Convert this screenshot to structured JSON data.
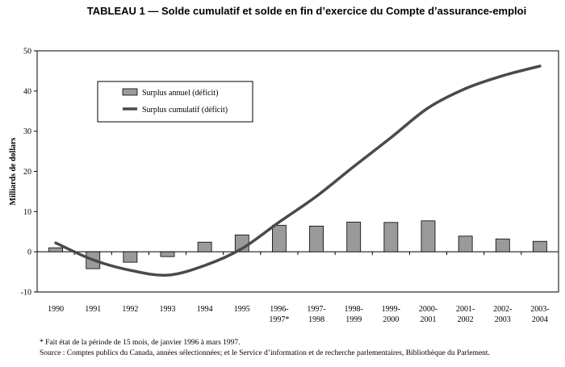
{
  "chart_data": {
    "type": "bar+line",
    "title": "TABLEAU 1 — Solde cumulatif et solde en fin d’exercice du Compte d’assurance-emploi",
    "ylabel": "Milliards de dollars",
    "xlabel": "",
    "ylim": [
      -10,
      50
    ],
    "yticks": [
      -10,
      0,
      10,
      20,
      30,
      40,
      50
    ],
    "categories": [
      [
        "1990"
      ],
      [
        "1991"
      ],
      [
        "1992"
      ],
      [
        "1993"
      ],
      [
        "1994"
      ],
      [
        "1995"
      ],
      [
        "1996-",
        "1997*"
      ],
      [
        "1997-",
        "1998"
      ],
      [
        "1998-",
        "1999"
      ],
      [
        "1999-",
        "2000"
      ],
      [
        "2000-",
        "2001"
      ],
      [
        "2001-",
        "2002"
      ],
      [
        "2002-",
        "2003"
      ],
      [
        "2003-",
        "2004"
      ]
    ],
    "series": [
      {
        "name": "Surplus annuel (déficit)",
        "type": "bar",
        "color": "#9a9a9a",
        "values": [
          1.0,
          -4.2,
          -2.6,
          -1.2,
          2.4,
          4.2,
          6.6,
          6.4,
          7.4,
          7.3,
          7.7,
          3.9,
          3.2,
          2.6
        ]
      },
      {
        "name": "Surplus cumulatif (déficit)",
        "type": "line",
        "color": "#4a4a4a",
        "values": [
          2.2,
          -2.0,
          -4.6,
          -5.8,
          -3.4,
          0.8,
          7.4,
          13.8,
          21.2,
          28.4,
          35.8,
          40.6,
          43.8,
          46.2
        ]
      }
    ],
    "legend": "top-left inside plot"
  },
  "footnotes": {
    "note": "* Fait état de la période de 15 mois, de janvier 1996 à mars 1997.",
    "source": "Source : Comptes publics du Canada, années sélectionnées; et le Service d’information et de recherche parlementaires, Bibliothèque du Parlement."
  }
}
